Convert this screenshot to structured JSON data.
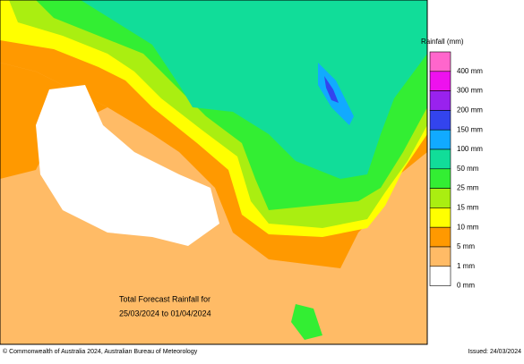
{
  "legend": {
    "title": "Rainfall (mm)",
    "entries": [
      {
        "label": "400 mm",
        "color": "#ff66cc"
      },
      {
        "label": "300 mm",
        "color": "#ee11ee"
      },
      {
        "label": "200 mm",
        "color": "#9922ee"
      },
      {
        "label": "150 mm",
        "color": "#3344ee"
      },
      {
        "label": "100 mm",
        "color": "#11aaff"
      },
      {
        "label": "50 mm",
        "color": "#11dd99"
      },
      {
        "label": "25 mm",
        "color": "#33ee33"
      },
      {
        "label": "15 mm",
        "color": "#aaee11"
      },
      {
        "label": "10 mm",
        "color": "#ffff00"
      },
      {
        "label": "5 mm",
        "color": "#ff9900"
      },
      {
        "label": "1 mm",
        "color": "#ffbb66"
      },
      {
        "label": "0 mm",
        "color": "#ffffff"
      }
    ]
  },
  "map": {
    "caption": [
      "Total Forecast Rainfall for",
      "25/03/2024 to 01/04/2024"
    ]
  },
  "footer": {
    "copyright": "© Commonwealth of Australia 2024, Australian Bureau of Meteorology",
    "issued": "Issued: 24/03/2024"
  }
}
